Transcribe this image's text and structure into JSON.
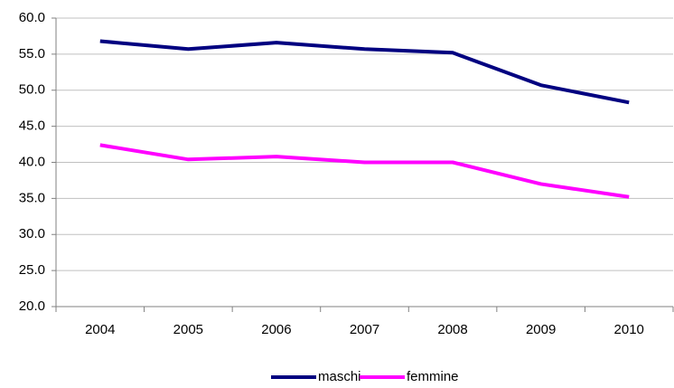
{
  "chart_data": {
    "type": "line",
    "categories": [
      "2004",
      "2005",
      "2006",
      "2007",
      "2008",
      "2009",
      "2010"
    ],
    "series": [
      {
        "name": "maschi",
        "color": "#000080",
        "values": [
          56.8,
          55.7,
          56.6,
          55.7,
          55.2,
          50.7,
          48.3
        ]
      },
      {
        "name": "femmine",
        "color": "#ff00ff",
        "values": [
          42.4,
          40.4,
          40.8,
          40.0,
          40.0,
          37.0,
          35.2
        ]
      }
    ],
    "ylim": [
      20,
      60
    ],
    "yticks": [
      {
        "value": 20,
        "label": "20.0"
      },
      {
        "value": 25,
        "label": "25.0"
      },
      {
        "value": 30,
        "label": "30.0"
      },
      {
        "value": 35,
        "label": "35.0"
      },
      {
        "value": 40,
        "label": "40.0"
      },
      {
        "value": 45,
        "label": "45.0"
      },
      {
        "value": 50,
        "label": "50.0"
      },
      {
        "value": 55,
        "label": "55.0"
      },
      {
        "value": 60,
        "label": "60.0"
      }
    ],
    "grid": true,
    "legend": "bottom"
  }
}
